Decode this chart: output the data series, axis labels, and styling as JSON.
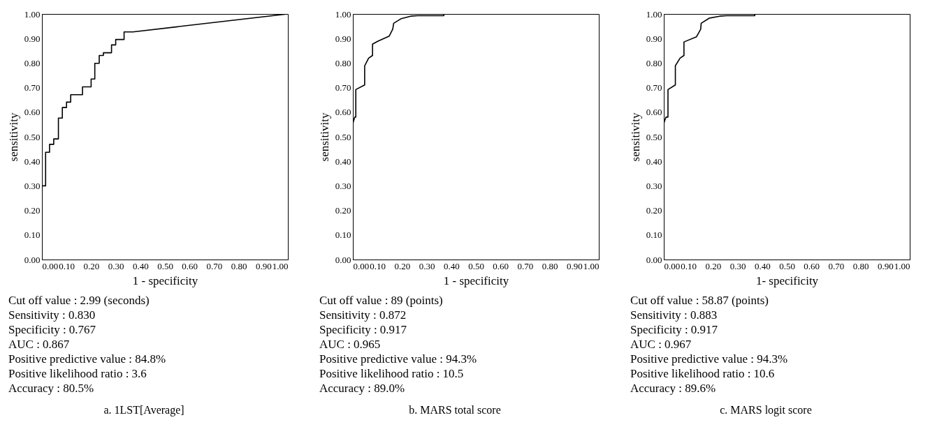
{
  "chart_data": [
    {
      "type": "line",
      "title": "a. 1LST[Average]",
      "xlabel": "1 - specificity",
      "ylabel": "sensitivity",
      "xlim": [
        0,
        1
      ],
      "ylim": [
        0,
        1
      ],
      "xticks": [
        {
          "value": 0,
          "label": "0.00"
        },
        {
          "value": 0.1,
          "label": "0.10"
        },
        {
          "value": 0.2,
          "label": "0.20"
        },
        {
          "value": 0.3,
          "label": "0.30"
        },
        {
          "value": 0.4,
          "label": "0.40"
        },
        {
          "value": 0.5,
          "label": "0.50"
        },
        {
          "value": 0.6,
          "label": "0.60"
        },
        {
          "value": 0.7,
          "label": "0.70"
        },
        {
          "value": 0.8,
          "label": "0.80"
        },
        {
          "value": 0.9,
          "label": "0.90"
        },
        {
          "value": 1,
          "label": "1.00"
        }
      ],
      "yticks": [
        {
          "value": 0,
          "label": "0.00"
        },
        {
          "value": 0.1,
          "label": "0.10"
        },
        {
          "value": 0.2,
          "label": "0.20"
        },
        {
          "value": 0.3,
          "label": "0.30"
        },
        {
          "value": 0.4,
          "label": "0.40"
        },
        {
          "value": 0.5,
          "label": "0.50"
        },
        {
          "value": 0.6,
          "label": "0.60"
        },
        {
          "value": 0.7,
          "label": "0.70"
        },
        {
          "value": 0.8,
          "label": "0.80"
        },
        {
          "value": 0.9,
          "label": "0.90"
        },
        {
          "value": 1,
          "label": "1.00"
        }
      ],
      "grid": false,
      "line_style": "solid",
      "marker": "none",
      "series": [
        {
          "color": "#000000",
          "x": [
            0,
            0.015,
            0.015,
            0.031,
            0.031,
            0.048,
            0.048,
            0.067,
            0.067,
            0.083,
            0.083,
            0.1,
            0.1,
            0.117,
            0.117,
            0.165,
            0.165,
            0.2,
            0.2,
            0.215,
            0.215,
            0.233,
            0.233,
            0.25,
            0.25,
            0.283,
            0.283,
            0.3,
            0.3,
            0.334,
            0.334,
            0.37,
            1
          ],
          "values": [
            0.3,
            0.3,
            0.437,
            0.437,
            0.469,
            0.469,
            0.491,
            0.491,
            0.576,
            0.576,
            0.619,
            0.619,
            0.641,
            0.641,
            0.671,
            0.671,
            0.703,
            0.703,
            0.735,
            0.735,
            0.799,
            0.799,
            0.831,
            0.831,
            0.842,
            0.842,
            0.874,
            0.874,
            0.896,
            0.896,
            0.927,
            0.927,
            1
          ]
        }
      ],
      "annotations": [
        "Cut off value : 2.99 (seconds)",
        "Sensitivity : 0.830",
        "Specificity : 0.767",
        "AUC : 0.867",
        "Positive predictive value : 84.8%",
        "Positive likelihood ratio : 3.6",
        "Accuracy : 80.5%"
      ]
    },
    {
      "type": "line",
      "title": "b. MARS total score",
      "xlabel": "1 - specificity",
      "ylabel": "sensitivity",
      "xlim": [
        0,
        1
      ],
      "ylim": [
        0,
        1
      ],
      "xticks": [
        {
          "value": 0,
          "label": "0.00"
        },
        {
          "value": 0.1,
          "label": "0.10"
        },
        {
          "value": 0.2,
          "label": "0.20"
        },
        {
          "value": 0.3,
          "label": "0.30"
        },
        {
          "value": 0.4,
          "label": "0.40"
        },
        {
          "value": 0.5,
          "label": "0.50"
        },
        {
          "value": 0.6,
          "label": "0.60"
        },
        {
          "value": 0.7,
          "label": "0.70"
        },
        {
          "value": 0.8,
          "label": "0.80"
        },
        {
          "value": 0.9,
          "label": "0.90"
        },
        {
          "value": 1,
          "label": "1.00"
        }
      ],
      "yticks": [
        {
          "value": 0,
          "label": "0.00"
        },
        {
          "value": 0.1,
          "label": "0.10"
        },
        {
          "value": 0.2,
          "label": "0.20"
        },
        {
          "value": 0.3,
          "label": "0.30"
        },
        {
          "value": 0.4,
          "label": "0.40"
        },
        {
          "value": 0.5,
          "label": "0.50"
        },
        {
          "value": 0.6,
          "label": "0.60"
        },
        {
          "value": 0.7,
          "label": "0.70"
        },
        {
          "value": 0.8,
          "label": "0.80"
        },
        {
          "value": 0.9,
          "label": "0.90"
        },
        {
          "value": 1,
          "label": "1.00"
        }
      ],
      "grid": false,
      "line_style": "solid",
      "marker": "none",
      "series": [
        {
          "color": "#000000",
          "x": [
            0,
            0.008,
            0.012,
            0.012,
            0.048,
            0.048,
            0.064,
            0.08,
            0.08,
            0.102,
            0.148,
            0.162,
            0.166,
            0.197,
            0.235,
            0.263,
            0.37,
            0.37,
            1
          ],
          "values": [
            0.555,
            0.58,
            0.58,
            0.692,
            0.711,
            0.789,
            0.82,
            0.831,
            0.877,
            0.889,
            0.91,
            0.938,
            0.962,
            0.981,
            0.991,
            0.993,
            0.993,
            1,
            1
          ]
        }
      ],
      "annotations": [
        "Cut off value : 89 (points)",
        "Sensitivity : 0.872",
        "Specificity : 0.917",
        "AUC : 0.965",
        "Positive predictive value : 94.3%",
        "Positive likelihood ratio : 10.5",
        "Accuracy : 89.0%"
      ]
    },
    {
      "type": "line",
      "title": "c. MARS logit score",
      "xlabel": "1- specificity",
      "ylabel": "sensitivity",
      "xlim": [
        0,
        1
      ],
      "ylim": [
        0,
        1
      ],
      "xticks": [
        {
          "value": 0,
          "label": "0.00"
        },
        {
          "value": 0.1,
          "label": "0.10"
        },
        {
          "value": 0.2,
          "label": "0.20"
        },
        {
          "value": 0.3,
          "label": "0.30"
        },
        {
          "value": 0.4,
          "label": "0.40"
        },
        {
          "value": 0.5,
          "label": "0.50"
        },
        {
          "value": 0.6,
          "label": "0.60"
        },
        {
          "value": 0.7,
          "label": "0.70"
        },
        {
          "value": 0.8,
          "label": "0.80"
        },
        {
          "value": 0.9,
          "label": "0.90"
        },
        {
          "value": 1,
          "label": "1.00"
        }
      ],
      "yticks": [
        {
          "value": 0,
          "label": "0.00"
        },
        {
          "value": 0.1,
          "label": "0.10"
        },
        {
          "value": 0.2,
          "label": "0.20"
        },
        {
          "value": 0.3,
          "label": "0.30"
        },
        {
          "value": 0.4,
          "label": "0.40"
        },
        {
          "value": 0.5,
          "label": "0.50"
        },
        {
          "value": 0.6,
          "label": "0.60"
        },
        {
          "value": 0.7,
          "label": "0.70"
        },
        {
          "value": 0.8,
          "label": "0.80"
        },
        {
          "value": 0.9,
          "label": "0.90"
        },
        {
          "value": 1,
          "label": "1.00"
        }
      ],
      "grid": false,
      "line_style": "solid",
      "marker": "none",
      "series": [
        {
          "color": "#000000",
          "x": [
            0,
            0.009,
            0.017,
            0.017,
            0.047,
            0.047,
            0.066,
            0.082,
            0.082,
            0.133,
            0.15,
            0.152,
            0.185,
            0.227,
            0.256,
            0.37,
            0.37,
            1
          ],
          "values": [
            0.555,
            0.58,
            0.58,
            0.692,
            0.711,
            0.789,
            0.82,
            0.831,
            0.886,
            0.907,
            0.938,
            0.962,
            0.983,
            0.991,
            0.993,
            0.993,
            1,
            1
          ]
        }
      ],
      "annotations": [
        "Cut off value : 58.87 (points)",
        "Sensitivity : 0.883",
        "Specificity : 0.917",
        "AUC : 0.967",
        "Positive predictive value : 94.3%",
        "Positive likelihood ratio : 10.6",
        "Accuracy : 89.6%"
      ]
    }
  ]
}
